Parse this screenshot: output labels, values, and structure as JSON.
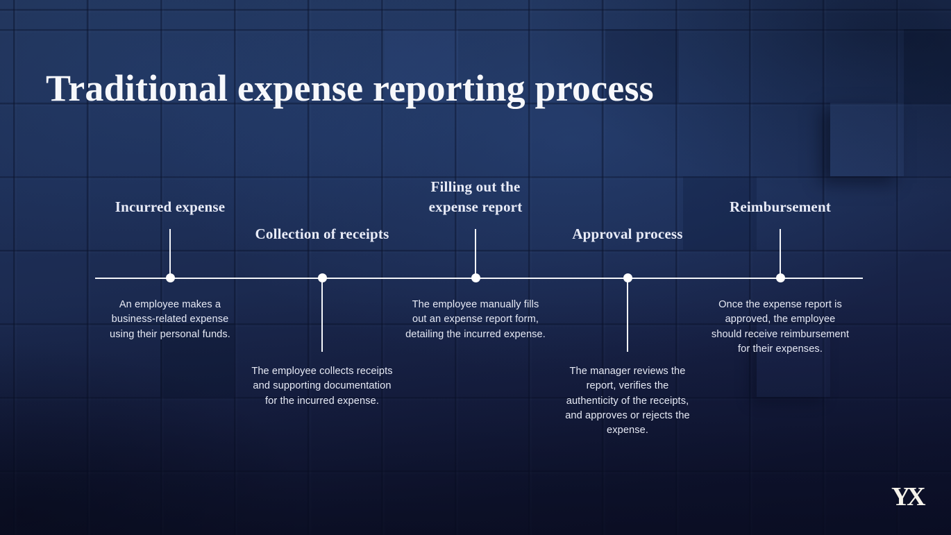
{
  "slide": {
    "title": "Traditional expense reporting process",
    "logo_monogram": "YX",
    "colors": {
      "background_navy": "#1e3058",
      "background_deep": "#0e1230",
      "timeline_white": "#f4f6fa",
      "heading_text": "#e9ecf8",
      "body_text": "#e7eaf5"
    }
  },
  "timeline": {
    "milestones": [
      {
        "title": "Incurred expense",
        "label_position": "above-line",
        "description": "An employee makes a\nbusiness-related expense\nusing their personal funds."
      },
      {
        "title": "Collection of receipts",
        "label_position": "below-line",
        "description": "The employee collects receipts\nand supporting documentation\nfor the incurred expense."
      },
      {
        "title": "Filling out the\nexpense report",
        "label_position": "above-line",
        "description": "The employee manually fills\nout an expense report form,\ndetailing the incurred expense."
      },
      {
        "title": "Approval process",
        "label_position": "below-line",
        "description": "The manager reviews the\nreport, verifies the\nauthenticity of the receipts,\nand approves or rejects the\nexpense."
      },
      {
        "title": "Reimbursement",
        "label_position": "above-line",
        "description": "Once the expense report is\napproved, the employee\nshould receive reimbursement\nfor their expenses."
      }
    ]
  }
}
